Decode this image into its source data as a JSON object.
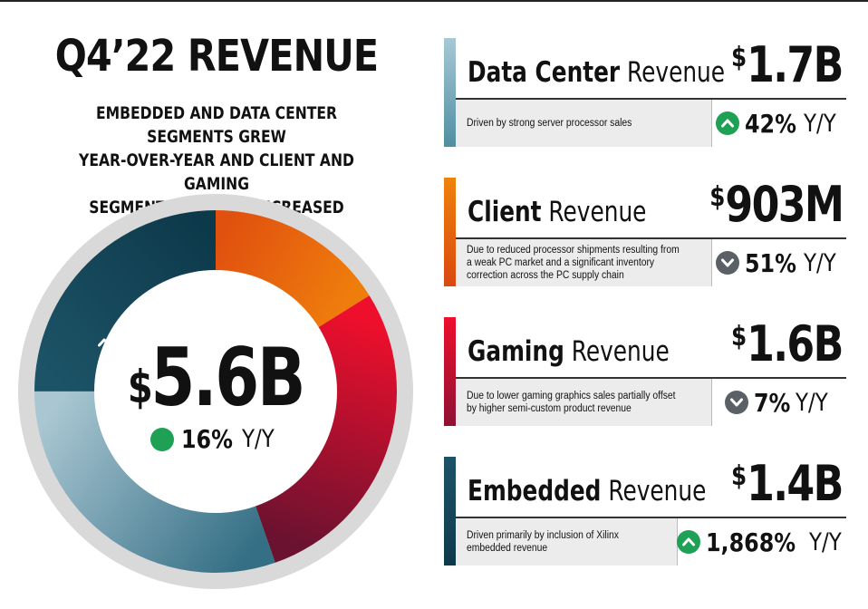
{
  "title": "Q4’22 REVENUE",
  "subtitle_lines": [
    "EMBEDDED AND DATA CENTER SEGMENTS GREW",
    "YEAR-OVER-YEAR AND CLIENT AND GAMING",
    "SEGMENT REVENUE DECREASED"
  ],
  "total": {
    "currency": "$",
    "value": "5.6B",
    "change": "16%",
    "change_suffix": "Y/Y",
    "direction": "up"
  },
  "segments": [
    {
      "name_bold": "Data Center",
      "name_rest": " Revenue",
      "currency": "$",
      "value": "1.7B",
      "description": "Driven by strong server processor sales",
      "change": "42%",
      "change_suffix": "Y/Y",
      "direction": "up",
      "color": "#5b95a6"
    },
    {
      "name_bold": "Client",
      "name_rest": " Revenue",
      "currency": "$",
      "value": "903M",
      "description": "Due to reduced processor shipments resulting from a weak PC market and a significant inventory correction across the PC supply chain",
      "change": "51%",
      "change_suffix": "Y/Y",
      "direction": "down",
      "color": "#e8650f"
    },
    {
      "name_bold": "Gaming",
      "name_rest": " Revenue",
      "currency": "$",
      "value": "1.6B",
      "description": "Due to lower gaming graphics sales partially offset by higher semi-custom product revenue",
      "change": "7%",
      "change_suffix": "Y/Y",
      "direction": "down",
      "color": "#9c1035"
    },
    {
      "name_bold": "Embedded",
      "name_rest": " Revenue",
      "currency": "$",
      "value": "1.4B",
      "description": "Driven primarily by inclusion of Xilinx embedded revenue",
      "change": "1,868%",
      "change_suffix": "Y/Y",
      "direction": "up",
      "color": "#14495c"
    }
  ],
  "chart_data": {
    "type": "pie",
    "variant": "donut",
    "unit": "$B",
    "categories": [
      "Client",
      "Gaming",
      "Data Center",
      "Embedded"
    ],
    "values": [
      0.903,
      1.6,
      1.7,
      1.4
    ],
    "colors": {
      "Client": [
        "#e0500f",
        "#ef7d0c"
      ],
      "Gaming": [
        "#ee0f2c",
        "#6a1230"
      ],
      "Data Center": [
        "#356f85",
        "#a9c6d2"
      ],
      "Embedded": [
        "#1d5367",
        "#0d3a4b"
      ]
    },
    "ring_color": "#d9d9d9",
    "start_angle_deg": 0,
    "direction": "clockwise"
  }
}
